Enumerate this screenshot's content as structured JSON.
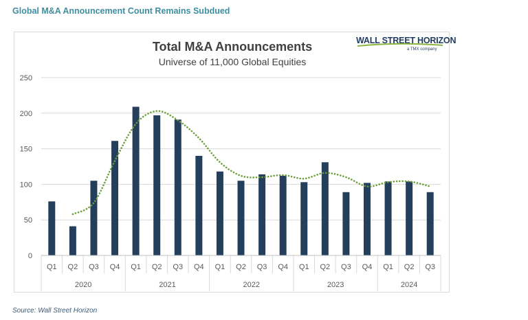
{
  "page_heading": "Global M&A Announcement Count Remains Subdued",
  "source_note": "Source: Wall Street Horizon",
  "logo": {
    "main": "WALL STREET HORIZON",
    "sub": "a TMX company"
  },
  "colors": {
    "bar": "#243f5c",
    "trend": "#6e9e3c",
    "heading": "#3f8fa0"
  },
  "chart_data": {
    "type": "bar",
    "title": "Total M&A Announcements",
    "subtitle": "Universe of 11,000 Global Equities",
    "xlabel": "",
    "ylabel": "",
    "ylim": [
      0,
      250
    ],
    "yticks": [
      0,
      50,
      100,
      150,
      200,
      250
    ],
    "grid": true,
    "categories": [
      "Q1",
      "Q2",
      "Q3",
      "Q4",
      "Q1",
      "Q2",
      "Q3",
      "Q4",
      "Q1",
      "Q2",
      "Q3",
      "Q4",
      "Q1",
      "Q2",
      "Q3",
      "Q4",
      "Q1",
      "Q2",
      "Q3"
    ],
    "year_groups": [
      {
        "label": "2020",
        "count": 4
      },
      {
        "label": "2021",
        "count": 4
      },
      {
        "label": "2022",
        "count": 4
      },
      {
        "label": "2023",
        "count": 4
      },
      {
        "label": "2024",
        "count": 3
      }
    ],
    "values": [
      76,
      41,
      105,
      161,
      209,
      197,
      191,
      140,
      118,
      105,
      114,
      112,
      103,
      131,
      89,
      102,
      104,
      104,
      89
    ],
    "trendline": {
      "style": "dotted",
      "start_index": 1,
      "values": [
        58,
        74,
        133,
        185,
        203,
        190,
        165,
        131,
        112,
        110,
        113,
        108,
        116,
        110,
        97,
        103,
        104,
        97
      ]
    }
  }
}
